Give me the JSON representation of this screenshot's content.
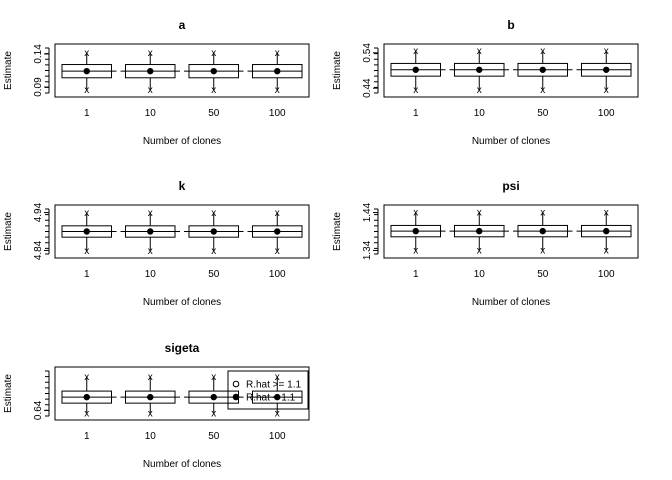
{
  "chart_data": [
    {
      "type": "boxplot",
      "title": "a",
      "xlabel": "Number of clones",
      "ylabel": "Estimate",
      "categories": [
        "1",
        "10",
        "50",
        "100"
      ],
      "yticks": [
        "0.09",
        "0.14"
      ],
      "ylim": [
        0.075,
        0.155
      ],
      "stats": [
        {
          "whisker_low": 0.086,
          "q1": 0.104,
          "median": 0.114,
          "mean": 0.114,
          "q3": 0.124,
          "whisker_high": 0.142
        },
        {
          "whisker_low": 0.086,
          "q1": 0.104,
          "median": 0.114,
          "mean": 0.114,
          "q3": 0.124,
          "whisker_high": 0.142
        },
        {
          "whisker_low": 0.086,
          "q1": 0.104,
          "median": 0.114,
          "mean": 0.114,
          "q3": 0.124,
          "whisker_high": 0.142
        },
        {
          "whisker_low": 0.086,
          "q1": 0.104,
          "median": 0.114,
          "mean": 0.114,
          "q3": 0.124,
          "whisker_high": 0.142
        }
      ]
    },
    {
      "type": "boxplot",
      "title": "b",
      "xlabel": "Number of clones",
      "ylabel": "Estimate",
      "categories": [
        "1",
        "10",
        "50",
        "100"
      ],
      "yticks": [
        "0.44",
        "0.54"
      ],
      "ylim": [
        0.415,
        0.565
      ],
      "stats": [
        {
          "whisker_low": 0.436,
          "q1": 0.474,
          "median": 0.492,
          "mean": 0.492,
          "q3": 0.51,
          "whisker_high": 0.546
        },
        {
          "whisker_low": 0.436,
          "q1": 0.474,
          "median": 0.492,
          "mean": 0.492,
          "q3": 0.51,
          "whisker_high": 0.546
        },
        {
          "whisker_low": 0.436,
          "q1": 0.474,
          "median": 0.492,
          "mean": 0.492,
          "q3": 0.51,
          "whisker_high": 0.546
        },
        {
          "whisker_low": 0.436,
          "q1": 0.474,
          "median": 0.492,
          "mean": 0.492,
          "q3": 0.51,
          "whisker_high": 0.546
        }
      ]
    },
    {
      "type": "boxplot",
      "title": "k",
      "xlabel": "Number of clones",
      "ylabel": "Estimate",
      "categories": [
        "1",
        "10",
        "50",
        "100"
      ],
      "yticks": [
        "4.84",
        "4.94"
      ],
      "ylim": [
        4.82,
        4.96
      ],
      "stats": [
        {
          "whisker_low": 4.84,
          "q1": 4.875,
          "median": 4.89,
          "mean": 4.89,
          "q3": 4.905,
          "whisker_high": 4.94
        },
        {
          "whisker_low": 4.84,
          "q1": 4.875,
          "median": 4.89,
          "mean": 4.89,
          "q3": 4.905,
          "whisker_high": 4.94
        },
        {
          "whisker_low": 4.84,
          "q1": 4.875,
          "median": 4.89,
          "mean": 4.89,
          "q3": 4.905,
          "whisker_high": 4.94
        },
        {
          "whisker_low": 4.84,
          "q1": 4.875,
          "median": 4.89,
          "mean": 4.89,
          "q3": 4.905,
          "whisker_high": 4.94
        }
      ]
    },
    {
      "type": "boxplot",
      "title": "psi",
      "xlabel": "Number of clones",
      "ylabel": "Estimate",
      "categories": [
        "1",
        "10",
        "50",
        "100"
      ],
      "yticks": [
        "1.34",
        "1.44"
      ],
      "ylim": [
        1.32,
        1.46
      ],
      "stats": [
        {
          "whisker_low": 1.341,
          "q1": 1.376,
          "median": 1.391,
          "mean": 1.391,
          "q3": 1.406,
          "whisker_high": 1.441
        },
        {
          "whisker_low": 1.341,
          "q1": 1.376,
          "median": 1.391,
          "mean": 1.391,
          "q3": 1.406,
          "whisker_high": 1.441
        },
        {
          "whisker_low": 1.341,
          "q1": 1.376,
          "median": 1.391,
          "mean": 1.391,
          "q3": 1.406,
          "whisker_high": 1.441
        },
        {
          "whisker_low": 1.341,
          "q1": 1.376,
          "median": 1.391,
          "mean": 1.391,
          "q3": 1.406,
          "whisker_high": 1.441
        }
      ]
    },
    {
      "type": "boxplot",
      "title": "sigeta",
      "xlabel": "Number of clones",
      "ylabel": "Estimate",
      "categories": [
        "1",
        "10",
        "50",
        "100"
      ],
      "yticks": [
        "0.64"
      ],
      "ylim": [
        0.6,
        0.82
      ],
      "stats": [
        {
          "whisker_low": 0.63,
          "q1": 0.67,
          "median": 0.695,
          "mean": 0.695,
          "q3": 0.72,
          "whisker_high": 0.78
        },
        {
          "whisker_low": 0.63,
          "q1": 0.67,
          "median": 0.695,
          "mean": 0.695,
          "q3": 0.72,
          "whisker_high": 0.78
        },
        {
          "whisker_low": 0.63,
          "q1": 0.67,
          "median": 0.695,
          "mean": 0.695,
          "q3": 0.72,
          "whisker_high": 0.78
        },
        {
          "whisker_low": 0.63,
          "q1": 0.67,
          "median": 0.695,
          "mean": 0.695,
          "q3": 0.72,
          "whisker_high": 0.78
        }
      ],
      "legend": {
        "placement": "right",
        "entries": [
          {
            "label": "R.hat >= 1.1",
            "marker": "open-circle"
          },
          {
            "label": "R.hat < 1.1",
            "marker": "filled-circle"
          }
        ]
      }
    }
  ]
}
